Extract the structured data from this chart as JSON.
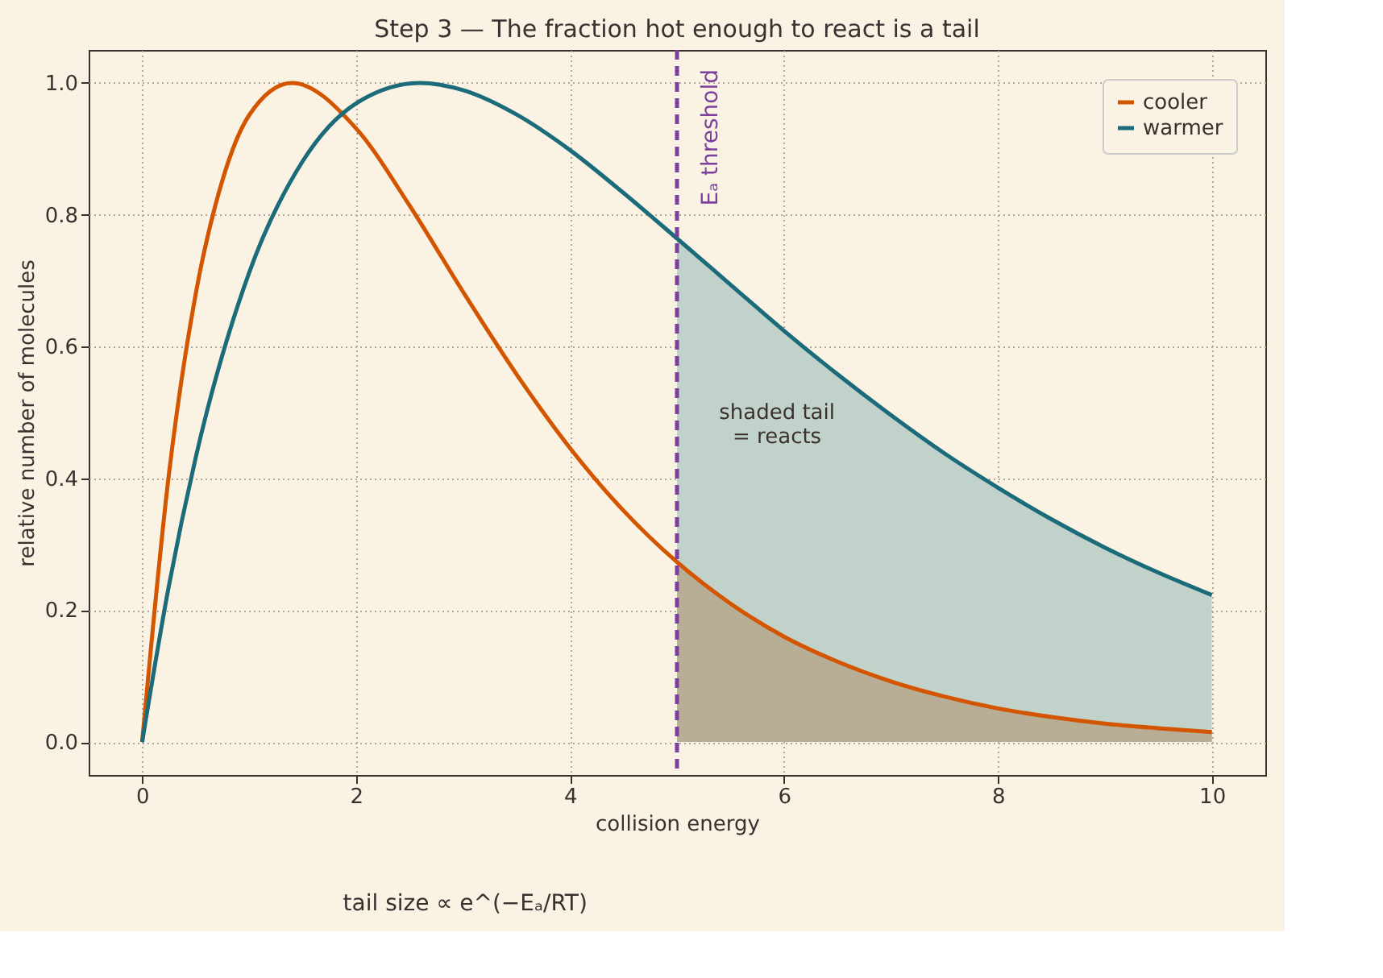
{
  "chart_data": {
    "type": "line",
    "title": "Step 3 — The fraction hot enough to react is a tail",
    "xlabel": "collision energy",
    "ylabel": "relative number of molecules",
    "xlim": [
      -0.5,
      10.5
    ],
    "ylim": [
      -0.05,
      1.05
    ],
    "xticks": [
      0,
      2,
      4,
      6,
      8,
      10
    ],
    "yticks": [
      {
        "value": 0,
        "label": "0.0"
      },
      {
        "value": 0.2,
        "label": "0.2"
      },
      {
        "value": 0.4,
        "label": "0.4"
      },
      {
        "value": 0.6,
        "label": "0.6"
      },
      {
        "value": 0.8,
        "label": "0.8"
      },
      {
        "value": 1,
        "label": "1.0"
      }
    ],
    "grid": true,
    "legend": "top right",
    "line_style": "solid",
    "marker": "none",
    "series": [
      {
        "type": "area",
        "color": "#c0d2ca",
        "x": [
          5,
          5.5,
          6,
          6.5,
          7,
          7.5,
          8,
          8.5,
          9,
          9.5,
          10
        ],
        "values": [
          0.764,
          0.694,
          0.624,
          0.558,
          0.496,
          0.438,
          0.386,
          0.338,
          0.295,
          0.257,
          0.223
        ]
      },
      {
        "type": "area",
        "color": "#b8ad95",
        "x": [
          5,
          5.5,
          6,
          6.5,
          7,
          7.5,
          8,
          8.5,
          9,
          9.5,
          10
        ],
        "values": [
          0.273,
          0.21,
          0.16,
          0.122,
          0.092,
          0.069,
          0.051,
          0.038,
          0.028,
          0.021,
          0.015
        ]
      },
      {
        "type": "line",
        "name": "cooler",
        "color": "#d45500",
        "x": [
          0,
          0.25,
          0.5,
          0.75,
          1,
          1.4,
          2,
          2.5,
          3,
          3.5,
          4,
          4.5,
          5,
          5.5,
          6,
          6.5,
          7,
          7.5,
          8,
          8.5,
          9,
          9.5,
          10
        ],
        "values": [
          0,
          0.406,
          0.679,
          0.852,
          0.951,
          1,
          0.931,
          0.814,
          0.683,
          0.558,
          0.446,
          0.351,
          0.273,
          0.21,
          0.16,
          0.122,
          0.092,
          0.069,
          0.051,
          0.038,
          0.028,
          0.021,
          0.015
        ]
      },
      {
        "type": "line",
        "name": "warmer",
        "color": "#1b6b7a",
        "x": [
          0,
          0.25,
          0.5,
          1,
          1.5,
          2,
          2.6,
          3,
          3.5,
          4,
          4.5,
          5,
          5.5,
          6,
          6.5,
          7,
          7.5,
          8,
          8.5,
          9,
          9.5,
          10
        ],
        "values": [
          0,
          0.237,
          0.431,
          0.712,
          0.881,
          0.969,
          1,
          0.989,
          0.952,
          0.898,
          0.833,
          0.764,
          0.694,
          0.624,
          0.558,
          0.496,
          0.438,
          0.386,
          0.338,
          0.295,
          0.257,
          0.223
        ]
      }
    ],
    "ref_lines": [
      {
        "axis": "x",
        "value": 5,
        "label": "Eₐ threshold",
        "color": "#7b3f9e",
        "line_style": "dashed"
      }
    ],
    "annotations": [
      "shaded tail\n= reacts",
      "tail size ∝ e^(−Eₐ/RT)"
    ]
  }
}
